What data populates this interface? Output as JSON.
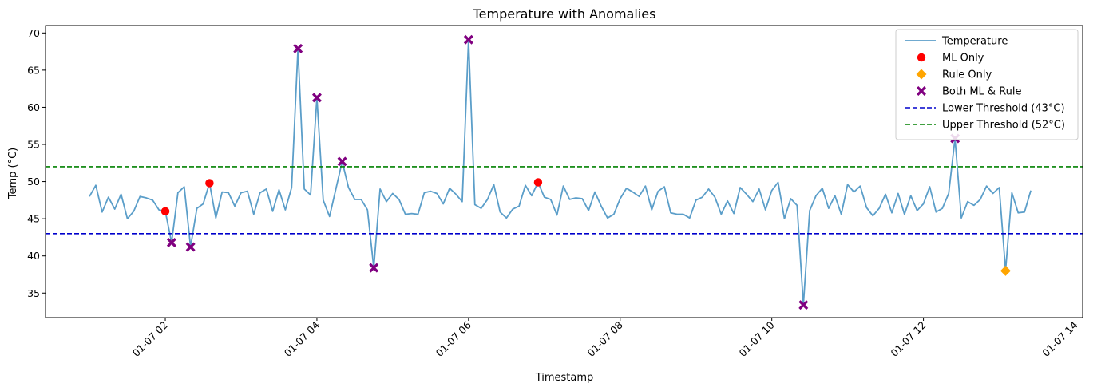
{
  "chart_data": {
    "type": "line",
    "title": "Temperature with Anomalies",
    "xlabel": "Timestamp",
    "ylabel": "Temp (°C)",
    "x_unit": "hours since 01-07 00:00",
    "xlim": [
      0.42,
      14.1
    ],
    "ylim": [
      31.7,
      71
    ],
    "x_ticks": [
      {
        "value": 2,
        "label": "01-07 02"
      },
      {
        "value": 4,
        "label": "01-07 04"
      },
      {
        "value": 6,
        "label": "01-07 06"
      },
      {
        "value": 8,
        "label": "01-07 08"
      },
      {
        "value": 10,
        "label": "01-07 10"
      },
      {
        "value": 12,
        "label": "01-07 12"
      },
      {
        "value": 14,
        "label": "01-07 14"
      }
    ],
    "y_ticks": [
      35,
      40,
      45,
      50,
      55,
      60,
      65,
      70
    ],
    "legend_position": "top-right",
    "series": [
      {
        "name": "Temperature",
        "kind": "line",
        "color": "#5b9ec9",
        "x_start": 1.0,
        "x_step": 0.08333,
        "values": [
          48.0,
          49.5,
          45.9,
          47.9,
          46.3,
          48.3,
          45.0,
          46.0,
          48.0,
          47.8,
          47.5,
          46.2,
          46.0,
          41.8,
          48.5,
          49.3,
          41.2,
          46.4,
          47.0,
          49.8,
          45.1,
          48.6,
          48.5,
          46.7,
          48.5,
          48.7,
          45.6,
          48.5,
          49.0,
          46.0,
          48.9,
          46.2,
          49.2,
          67.9,
          49.0,
          48.2,
          61.3,
          47.5,
          45.3,
          49.0,
          52.7,
          49.2,
          47.6,
          47.6,
          46.2,
          38.4,
          49.0,
          47.3,
          48.4,
          47.6,
          45.6,
          45.7,
          45.6,
          48.5,
          48.7,
          48.4,
          47.0,
          49.1,
          48.3,
          47.3,
          69.1,
          46.9,
          46.4,
          47.6,
          49.6,
          45.9,
          45.1,
          46.3,
          46.7,
          49.5,
          48.1,
          49.9,
          47.9,
          47.6,
          45.5,
          49.4,
          47.6,
          47.8,
          47.7,
          46.1,
          48.6,
          46.7,
          45.1,
          45.6,
          47.7,
          49.1,
          48.6,
          48.0,
          49.4,
          46.2,
          48.7,
          49.3,
          45.8,
          45.6,
          45.6,
          45.1,
          47.5,
          47.9,
          49.0,
          47.9,
          45.6,
          47.4,
          45.7,
          49.2,
          48.3,
          47.3,
          49.0,
          46.2,
          48.8,
          49.9,
          45.0,
          47.7,
          46.8,
          33.4,
          46.1,
          48.1,
          49.1,
          46.4,
          48.1,
          45.6,
          49.6,
          48.6,
          49.4,
          46.5,
          45.4,
          46.4,
          48.3,
          45.8,
          48.4,
          45.6,
          48.1,
          46.1,
          47.0,
          49.3,
          45.9,
          46.4,
          48.4,
          55.8,
          45.1,
          47.3,
          46.8,
          47.6,
          49.4,
          48.4,
          49.2,
          38.0,
          48.5,
          45.8,
          45.9,
          48.8
        ]
      },
      {
        "name": "ML Only",
        "kind": "scatter",
        "marker": "circle",
        "color": "#ff0000",
        "points": [
          [
            2.0,
            46.0
          ],
          [
            2.583,
            49.8
          ],
          [
            6.917,
            49.9
          ]
        ]
      },
      {
        "name": "Rule Only",
        "kind": "scatter",
        "marker": "diamond",
        "color": "#ffa500",
        "points": [
          [
            13.083,
            38.0
          ]
        ]
      },
      {
        "name": "Both ML & Rule",
        "kind": "scatter",
        "marker": "x",
        "color": "#800080",
        "points": [
          [
            2.083,
            41.8
          ],
          [
            2.333,
            41.2
          ],
          [
            3.75,
            67.9
          ],
          [
            4.0,
            61.3
          ],
          [
            4.333,
            52.7
          ],
          [
            4.75,
            38.4
          ],
          [
            6.0,
            69.1
          ],
          [
            10.417,
            33.4
          ],
          [
            12.417,
            55.8
          ]
        ]
      },
      {
        "name": "Lower Threshold (43°C)",
        "kind": "hline",
        "style": "dashed",
        "color": "#0000cc",
        "y": 43
      },
      {
        "name": "Upper Threshold (52°C)",
        "kind": "hline",
        "style": "dashed",
        "color": "#008000",
        "y": 52
      }
    ]
  }
}
